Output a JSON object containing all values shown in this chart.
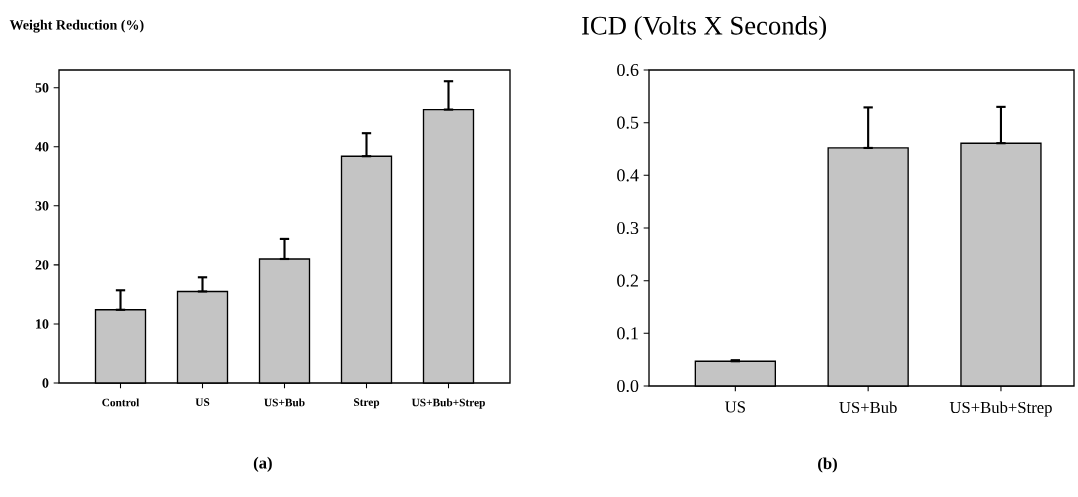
{
  "chart_data": [
    {
      "type": "bar",
      "title": "Weight Reduction (%)",
      "categories": [
        "Control",
        "US",
        "US+Bub",
        "Strep",
        "US+Bub+Strep"
      ],
      "values": [
        12.4,
        15.5,
        21.0,
        38.4,
        46.3
      ],
      "errors": [
        [
          12.4,
          15.7
        ],
        [
          15.5,
          17.9
        ],
        [
          21.0,
          24.4
        ],
        [
          38.4,
          42.3
        ],
        [
          46.3,
          51.1
        ]
      ],
      "color": "#c4c4c4",
      "ylim": [
        0,
        53
      ],
      "yticks": [
        0,
        10,
        20,
        30,
        40,
        50
      ],
      "annotations": [
        "(a)"
      ]
    },
    {
      "type": "bar",
      "title": "ICD (Volts X Seconds)",
      "categories": [
        "US",
        "US+Bub",
        "US+Bub+Strep"
      ],
      "values": [
        0.047,
        0.452,
        0.461
      ],
      "errors": [
        [
          0.047,
          0.049
        ],
        [
          0.452,
          0.529
        ],
        [
          0.461,
          0.53
        ]
      ],
      "color": "#c4c4c4",
      "ylim": [
        0,
        0.6
      ],
      "yticks": [
        {
          "value": 0,
          "label": "0.0"
        },
        0.1,
        0.2,
        0.3,
        0.4,
        0.5,
        0.6
      ],
      "annotations": [
        "(b)"
      ]
    }
  ]
}
